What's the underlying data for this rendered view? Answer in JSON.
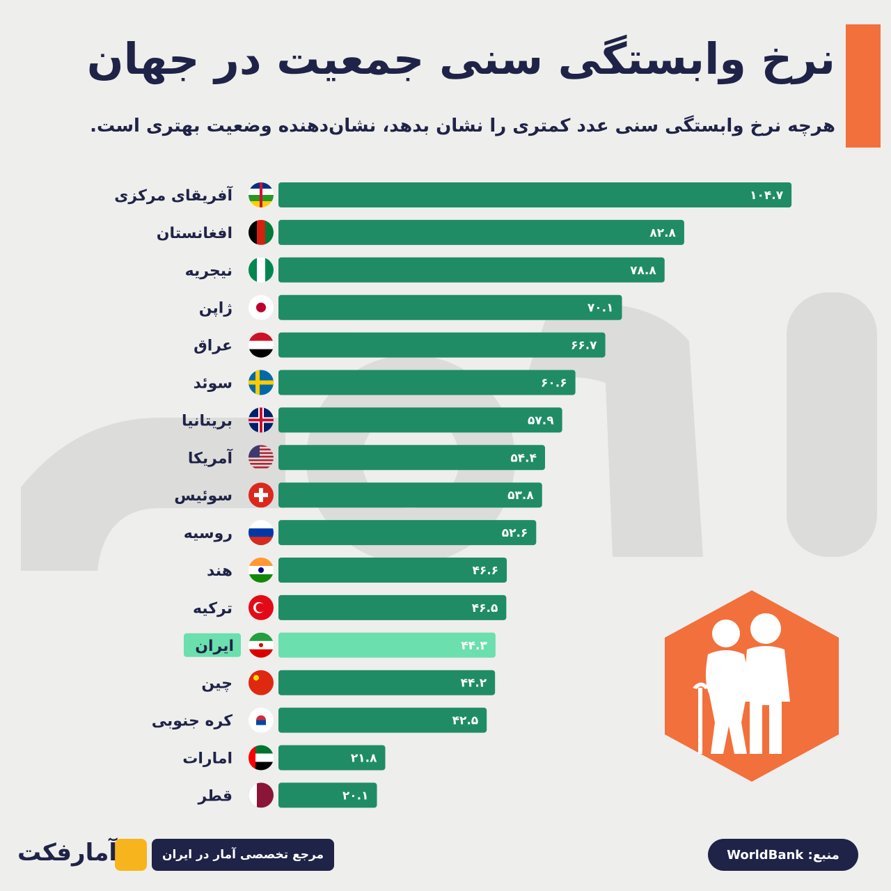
{
  "header": {
    "title": "نرخ وابستگی سنی جمعیت در جهان",
    "subtitle": "هرچه نرخ وابستگی سنی عدد کمتری را نشان بدهد، نشان‌دهنده وضعیت بهتری است."
  },
  "colors": {
    "bar": "#1f8c66",
    "highlight_bar": "#6bdfad",
    "accent": "#f2703c",
    "text": "#1f2347"
  },
  "chart_data": {
    "type": "bar",
    "orientation": "horizontal",
    "categories": [
      "آفریقای مرکزی",
      "افغانستان",
      "نیجریه",
      "ژاپن",
      "عراق",
      "سوئد",
      "بریتانیا",
      "آمریکا",
      "سوئیس",
      "روسیه",
      "هند",
      "ترکیه",
      "ایران",
      "چین",
      "کره جنوبی",
      "امارات",
      "قطر"
    ],
    "values": [
      104.7,
      82.8,
      78.8,
      70.1,
      66.7,
      60.6,
      57.9,
      54.4,
      53.8,
      52.6,
      46.6,
      46.5,
      44.3,
      44.2,
      42.5,
      21.8,
      20.1
    ],
    "value_labels": [
      "۱۰۴.۷",
      "۸۲.۸",
      "۷۸.۸",
      "۷۰.۱",
      "۶۶.۷",
      "۶۰.۶",
      "۵۷.۹",
      "۵۴.۴",
      "۵۳.۸",
      "۵۲.۶",
      "۴۶.۶",
      "۴۶.۵",
      "۴۴.۳",
      "۴۴.۲",
      "۴۲.۵",
      "۲۱.۸",
      "۲۰.۱"
    ],
    "flags": [
      "flag-central-african-republic",
      "flag-afghanistan",
      "flag-nigeria",
      "flag-japan",
      "flag-iraq",
      "flag-sweden",
      "flag-uk",
      "flag-usa",
      "flag-switzerland",
      "flag-russia",
      "flag-india",
      "flag-turkey",
      "flag-iran",
      "flag-china",
      "flag-south-korea",
      "flag-uae",
      "flag-qatar"
    ],
    "highlight": "ایران",
    "title": "نرخ وابستگی سنی جمعیت در جهان",
    "xlabel": "",
    "ylabel": "",
    "grid": false,
    "legend": "none"
  },
  "footer": {
    "logo_text": "آمارفکت",
    "tagline": "مرجع تخصصی آمار در ایران",
    "source": "منبع: WorldBank"
  }
}
